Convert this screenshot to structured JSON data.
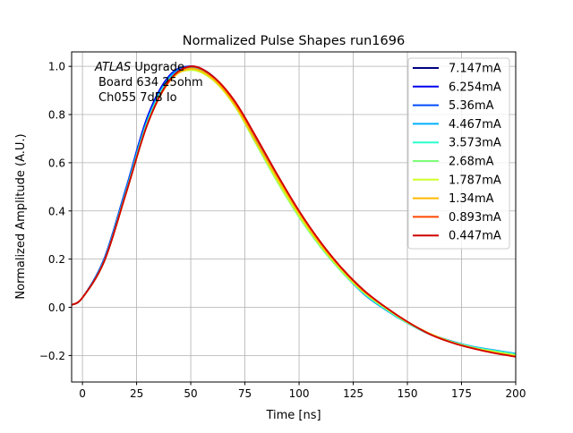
{
  "chart_data": {
    "type": "line",
    "title": "Normalized Pulse Shapes run1696",
    "xlabel": "Time [ns]",
    "ylabel": "Normalized Amplitude (A.U.)",
    "xlim": [
      -5,
      200
    ],
    "ylim": [
      -0.31,
      1.06
    ],
    "xticks": [
      0,
      25,
      50,
      75,
      100,
      125,
      150,
      175,
      200
    ],
    "yticks": [
      -0.2,
      0.0,
      0.2,
      0.4,
      0.6,
      0.8,
      1.0
    ],
    "xtick_labels": [
      "0",
      "25",
      "50",
      "75",
      "100",
      "125",
      "150",
      "175",
      "200"
    ],
    "ytick_labels": [
      "−0.2",
      "0.0",
      "0.2",
      "0.4",
      "0.6",
      "0.8",
      "1.0"
    ],
    "grid": true,
    "legend_position": "top-right",
    "annotation": {
      "italic": "ATLAS",
      "line1": " Upgrade",
      "line2": "Board 634 25ohm",
      "line3": "Ch055 7dB Io"
    },
    "x": [
      -5,
      0,
      10,
      20,
      30,
      40,
      50,
      60,
      70,
      80,
      90,
      100,
      110,
      120,
      130,
      140,
      150,
      160,
      170,
      180,
      190,
      200
    ],
    "series": [
      {
        "name": "7.147mA",
        "color": "#00007f",
        "values": [
          0.01,
          0.04,
          0.2,
          0.49,
          0.79,
          0.96,
          1.0,
          0.96,
          0.85,
          0.7,
          0.54,
          0.39,
          0.26,
          0.15,
          0.055,
          -0.01,
          -0.065,
          -0.11,
          -0.14,
          -0.165,
          -0.18,
          -0.195
        ]
      },
      {
        "name": "6.254mA",
        "color": "#0000f1",
        "values": [
          0.01,
          0.04,
          0.2,
          0.49,
          0.79,
          0.96,
          1.0,
          0.96,
          0.85,
          0.7,
          0.54,
          0.39,
          0.26,
          0.15,
          0.055,
          -0.01,
          -0.065,
          -0.11,
          -0.14,
          -0.165,
          -0.18,
          -0.195
        ]
      },
      {
        "name": "5.36mA",
        "color": "#004cff",
        "values": [
          0.01,
          0.04,
          0.2,
          0.49,
          0.78,
          0.955,
          1.0,
          0.96,
          0.85,
          0.7,
          0.54,
          0.385,
          0.255,
          0.145,
          0.055,
          -0.01,
          -0.065,
          -0.11,
          -0.14,
          -0.163,
          -0.178,
          -0.193
        ]
      },
      {
        "name": "4.467mA",
        "color": "#00b0ff",
        "values": [
          0.01,
          0.04,
          0.195,
          0.48,
          0.775,
          0.95,
          0.995,
          0.955,
          0.845,
          0.69,
          0.53,
          0.38,
          0.25,
          0.145,
          0.055,
          -0.01,
          -0.065,
          -0.11,
          -0.14,
          -0.163,
          -0.178,
          -0.192
        ]
      },
      {
        "name": "3.573mA",
        "color": "#29ffce",
        "values": [
          0.01,
          0.04,
          0.19,
          0.475,
          0.77,
          0.945,
          0.99,
          0.95,
          0.84,
          0.685,
          0.525,
          0.375,
          0.25,
          0.145,
          0.058,
          -0.008,
          -0.065,
          -0.11,
          -0.142,
          -0.165,
          -0.18,
          -0.195
        ]
      },
      {
        "name": "2.68mA",
        "color": "#7dff7a",
        "values": [
          0.01,
          0.04,
          0.19,
          0.47,
          0.765,
          0.94,
          0.985,
          0.945,
          0.84,
          0.68,
          0.52,
          0.375,
          0.25,
          0.145,
          0.06,
          -0.005,
          -0.063,
          -0.108,
          -0.142,
          -0.166,
          -0.182,
          -0.197
        ]
      },
      {
        "name": "1.787mA",
        "color": "#ceff29",
        "values": [
          0.01,
          0.04,
          0.19,
          0.47,
          0.76,
          0.94,
          0.985,
          0.945,
          0.84,
          0.685,
          0.525,
          0.38,
          0.255,
          0.15,
          0.062,
          -0.003,
          -0.062,
          -0.108,
          -0.143,
          -0.168,
          -0.185,
          -0.2
        ]
      },
      {
        "name": "1.34mA",
        "color": "#ffb900",
        "values": [
          0.01,
          0.04,
          0.19,
          0.47,
          0.76,
          0.935,
          0.99,
          0.95,
          0.845,
          0.69,
          0.535,
          0.39,
          0.26,
          0.155,
          0.065,
          0.0,
          -0.06,
          -0.108,
          -0.144,
          -0.17,
          -0.188,
          -0.203
        ]
      },
      {
        "name": "0.893mA",
        "color": "#ff4800",
        "values": [
          0.01,
          0.04,
          0.19,
          0.47,
          0.76,
          0.94,
          0.998,
          0.958,
          0.855,
          0.705,
          0.548,
          0.398,
          0.268,
          0.158,
          0.068,
          0.0,
          -0.06,
          -0.11,
          -0.145,
          -0.17,
          -0.19,
          -0.205
        ]
      },
      {
        "name": "0.447mA",
        "color": "#d00000",
        "values": [
          0.01,
          0.04,
          0.19,
          0.47,
          0.76,
          0.94,
          1.0,
          0.96,
          0.86,
          0.71,
          0.55,
          0.4,
          0.27,
          0.16,
          0.07,
          0.0,
          -0.06,
          -0.11,
          -0.145,
          -0.17,
          -0.19,
          -0.205
        ]
      }
    ]
  }
}
